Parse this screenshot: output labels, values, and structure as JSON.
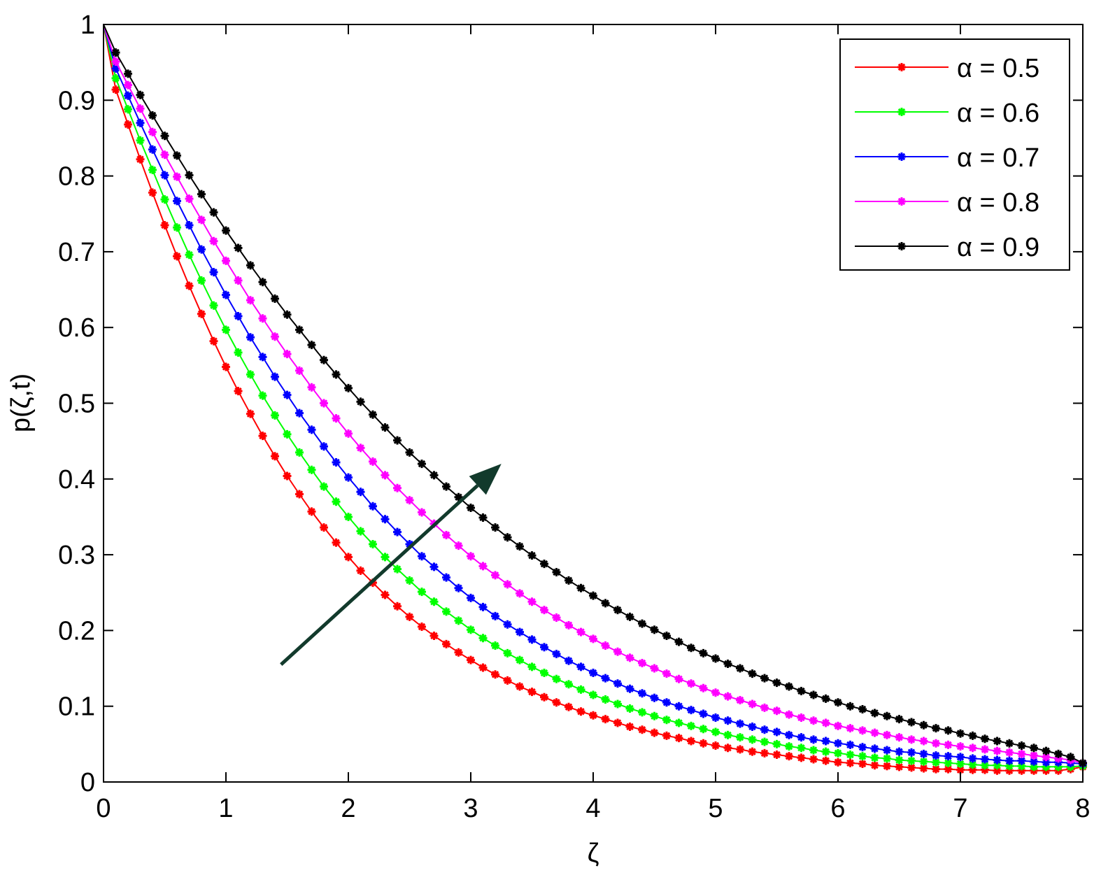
{
  "chart_data": {
    "type": "line",
    "xlabel": "ζ",
    "ylabel": "p(ζ,t)",
    "xlim": [
      0,
      8
    ],
    "ylim": [
      0,
      1
    ],
    "xticks": [
      "0",
      "1",
      "2",
      "3",
      "4",
      "5",
      "6",
      "7",
      "8"
    ],
    "yticks": [
      "0",
      "0.1",
      "0.2",
      "0.3",
      "0.4",
      "0.5",
      "0.6",
      "0.7",
      "0.8",
      "0.9",
      "1"
    ],
    "grid": false,
    "legend_position": "top-right",
    "marker": "star",
    "x_step": 0.1,
    "series": [
      {
        "name": "α = 0.5",
        "color": "#ff0000",
        "values": [
          1.0,
          0.914,
          0.868,
          0.822,
          0.778,
          0.735,
          0.694,
          0.655,
          0.618,
          0.582,
          0.548,
          0.516,
          0.486,
          0.457,
          0.43,
          0.404,
          0.38,
          0.357,
          0.336,
          0.316,
          0.297,
          0.279,
          0.263,
          0.247,
          0.232,
          0.218,
          0.205,
          0.193,
          0.182,
          0.171,
          0.161,
          0.151,
          0.142,
          0.134,
          0.126,
          0.119,
          0.112,
          0.105,
          0.099,
          0.093,
          0.088,
          0.083,
          0.078,
          0.073,
          0.069,
          0.065,
          0.061,
          0.058,
          0.054,
          0.051,
          0.048,
          0.045,
          0.043,
          0.04,
          0.038,
          0.036,
          0.034,
          0.032,
          0.03,
          0.028,
          0.026,
          0.025,
          0.024,
          0.022,
          0.021,
          0.02,
          0.019,
          0.018,
          0.017,
          0.017,
          0.016,
          0.016,
          0.016,
          0.015,
          0.015,
          0.015,
          0.015,
          0.015,
          0.015,
          0.017,
          0.02
        ]
      },
      {
        "name": "α = 0.6",
        "color": "#00ff00",
        "values": [
          1.0,
          0.929,
          0.888,
          0.847,
          0.808,
          0.769,
          0.732,
          0.696,
          0.662,
          0.629,
          0.597,
          0.567,
          0.538,
          0.51,
          0.484,
          0.459,
          0.435,
          0.412,
          0.39,
          0.37,
          0.35,
          0.331,
          0.314,
          0.297,
          0.281,
          0.266,
          0.251,
          0.238,
          0.225,
          0.213,
          0.201,
          0.19,
          0.18,
          0.17,
          0.161,
          0.152,
          0.144,
          0.136,
          0.129,
          0.122,
          0.115,
          0.109,
          0.103,
          0.097,
          0.092,
          0.087,
          0.082,
          0.078,
          0.074,
          0.07,
          0.066,
          0.062,
          0.059,
          0.056,
          0.053,
          0.05,
          0.047,
          0.045,
          0.042,
          0.04,
          0.038,
          0.036,
          0.034,
          0.032,
          0.031,
          0.029,
          0.028,
          0.027,
          0.026,
          0.025,
          0.024,
          0.023,
          0.022,
          0.022,
          0.021,
          0.021,
          0.02,
          0.02,
          0.02,
          0.02,
          0.021
        ]
      },
      {
        "name": "α = 0.7",
        "color": "#0000ff",
        "values": [
          1.0,
          0.942,
          0.906,
          0.87,
          0.835,
          0.801,
          0.767,
          0.735,
          0.703,
          0.673,
          0.643,
          0.615,
          0.587,
          0.561,
          0.535,
          0.511,
          0.487,
          0.465,
          0.443,
          0.422,
          0.402,
          0.383,
          0.364,
          0.347,
          0.33,
          0.314,
          0.298,
          0.284,
          0.27,
          0.256,
          0.243,
          0.231,
          0.219,
          0.208,
          0.198,
          0.188,
          0.178,
          0.169,
          0.16,
          0.152,
          0.144,
          0.137,
          0.13,
          0.123,
          0.117,
          0.111,
          0.105,
          0.1,
          0.095,
          0.09,
          0.085,
          0.081,
          0.077,
          0.073,
          0.069,
          0.066,
          0.062,
          0.059,
          0.056,
          0.054,
          0.051,
          0.049,
          0.046,
          0.044,
          0.042,
          0.04,
          0.039,
          0.037,
          0.035,
          0.034,
          0.033,
          0.031,
          0.03,
          0.029,
          0.028,
          0.028,
          0.027,
          0.026,
          0.026,
          0.025,
          0.024
        ]
      },
      {
        "name": "α = 0.8",
        "color": "#ff00ff",
        "values": [
          1.0,
          0.951,
          0.92,
          0.889,
          0.858,
          0.828,
          0.799,
          0.77,
          0.742,
          0.714,
          0.688,
          0.662,
          0.636,
          0.612,
          0.588,
          0.565,
          0.543,
          0.521,
          0.5,
          0.48,
          0.46,
          0.441,
          0.423,
          0.405,
          0.388,
          0.372,
          0.356,
          0.341,
          0.326,
          0.312,
          0.298,
          0.285,
          0.273,
          0.261,
          0.249,
          0.238,
          0.227,
          0.217,
          0.207,
          0.198,
          0.189,
          0.18,
          0.172,
          0.164,
          0.157,
          0.15,
          0.143,
          0.136,
          0.13,
          0.124,
          0.118,
          0.113,
          0.108,
          0.103,
          0.098,
          0.094,
          0.089,
          0.085,
          0.081,
          0.078,
          0.074,
          0.071,
          0.068,
          0.065,
          0.062,
          0.059,
          0.056,
          0.054,
          0.051,
          0.049,
          0.047,
          0.045,
          0.043,
          0.041,
          0.039,
          0.037,
          0.035,
          0.033,
          0.031,
          0.029,
          0.025
        ]
      },
      {
        "name": "α = 0.9",
        "color": "#000000",
        "values": [
          1.0,
          0.963,
          0.935,
          0.907,
          0.88,
          0.853,
          0.827,
          0.801,
          0.776,
          0.752,
          0.728,
          0.705,
          0.682,
          0.66,
          0.638,
          0.617,
          0.597,
          0.577,
          0.557,
          0.538,
          0.52,
          0.502,
          0.485,
          0.468,
          0.451,
          0.435,
          0.42,
          0.405,
          0.39,
          0.376,
          0.362,
          0.349,
          0.336,
          0.323,
          0.311,
          0.299,
          0.288,
          0.277,
          0.266,
          0.256,
          0.246,
          0.236,
          0.227,
          0.218,
          0.209,
          0.201,
          0.193,
          0.185,
          0.177,
          0.17,
          0.163,
          0.156,
          0.15,
          0.143,
          0.137,
          0.131,
          0.126,
          0.12,
          0.115,
          0.11,
          0.105,
          0.1,
          0.096,
          0.091,
          0.087,
          0.083,
          0.079,
          0.075,
          0.071,
          0.068,
          0.064,
          0.061,
          0.057,
          0.054,
          0.051,
          0.048,
          0.045,
          0.041,
          0.037,
          0.033,
          0.025
        ]
      }
    ],
    "annotation": {
      "type": "arrow",
      "from": [
        1.45,
        0.155
      ],
      "to": [
        3.25,
        0.42
      ],
      "color": "#123a2c"
    }
  }
}
